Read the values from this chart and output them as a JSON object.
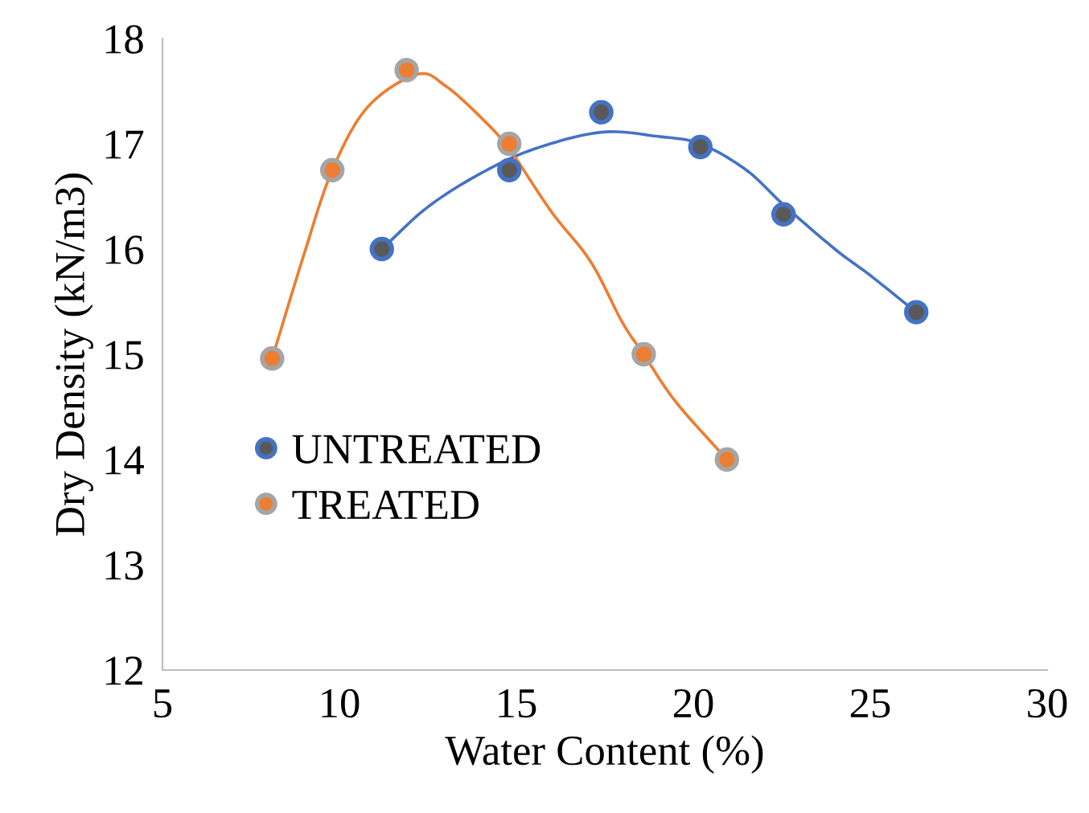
{
  "chart_data": {
    "type": "scatter",
    "xlabel": "Water Content (%)",
    "ylabel": "Dry Density (kN/m3)",
    "xlim": [
      5,
      30
    ],
    "xticks": [
      5,
      10,
      15,
      20,
      25,
      30
    ],
    "ylim": [
      12,
      18
    ],
    "yticks": [
      12,
      13,
      14,
      15,
      16,
      17,
      18
    ],
    "grid": false,
    "legend": "left",
    "series": [
      {
        "name": "UNTREATED",
        "marker": "circle",
        "color": "#595959",
        "x": [
          11.2,
          14.8,
          17.4,
          20.2,
          22.55,
          26.3
        ],
        "values": [
          16.0,
          16.75,
          17.3,
          16.97,
          16.33,
          15.4
        ]
      },
      {
        "name": "TREATED",
        "marker": "circle",
        "color": "#ed7d31",
        "x": [
          8.1,
          9.8,
          11.9,
          14.8,
          18.6,
          20.95
        ],
        "values": [
          14.96,
          16.75,
          17.7,
          17.0,
          15.0,
          14.0
        ]
      },
      {
        "type": "line",
        "marker": "none",
        "color": "#4472c4",
        "line_style": "solid",
        "x": [
          11.2,
          12.5,
          14.0,
          15.5,
          17.4,
          19.0,
          20.2,
          21.5,
          22.55,
          24.0,
          25.0,
          26.3
        ],
        "values": [
          16.0,
          16.4,
          16.72,
          16.95,
          17.11,
          17.07,
          17.0,
          16.75,
          16.42,
          16.0,
          15.75,
          15.4
        ]
      },
      {
        "type": "line",
        "marker": "none",
        "color": "#ed7d31",
        "line_style": "solid",
        "x": [
          8.1,
          9.0,
          9.8,
          10.8,
          12.2,
          13.0,
          14.0,
          14.8,
          16.0,
          17.1,
          18.0,
          18.6,
          19.5,
          20.95
        ],
        "values": [
          14.96,
          15.95,
          16.75,
          17.35,
          17.66,
          17.55,
          17.25,
          16.95,
          16.35,
          15.88,
          15.3,
          15.0,
          14.55,
          14.0
        ]
      }
    ]
  }
}
